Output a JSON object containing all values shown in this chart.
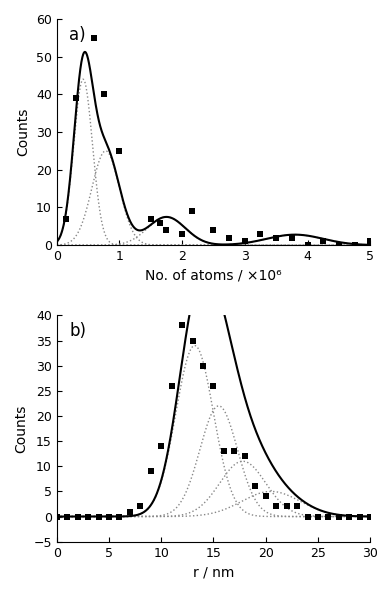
{
  "panel_a": {
    "label": "a)",
    "scatter_x": [
      0.15,
      0.3,
      0.6,
      0.75,
      1.0,
      1.5,
      1.65,
      1.75,
      2.0,
      2.15,
      2.5,
      2.75,
      3.0,
      3.25,
      3.5,
      3.75,
      4.0,
      4.25,
      4.5,
      4.75,
      5.0
    ],
    "scatter_y": [
      7,
      39,
      55,
      40,
      25,
      7,
      6,
      4,
      3,
      9,
      4,
      2,
      1,
      3,
      2,
      2,
      0,
      1,
      0,
      0,
      1
    ],
    "xlim": [
      0,
      5
    ],
    "ylim": [
      0,
      60
    ],
    "yticks": [
      0,
      10,
      20,
      30,
      40,
      50,
      60
    ],
    "xticks": [
      0,
      1,
      2,
      3,
      4,
      5
    ],
    "xlabel": "No. of atoms / ×10⁶",
    "ylabel": "Counts",
    "gaussians": [
      {
        "amp": 44,
        "mu": 0.42,
        "sigma": 0.15
      },
      {
        "amp": 25,
        "mu": 0.78,
        "sigma": 0.22
      },
      {
        "amp": 7.5,
        "mu": 1.75,
        "sigma": 0.3
      },
      {
        "amp": 2.8,
        "mu": 3.8,
        "sigma": 0.45
      }
    ]
  },
  "panel_b": {
    "label": "b)",
    "scatter_x": [
      0,
      1,
      2,
      3,
      4,
      5,
      6,
      7,
      8,
      9,
      10,
      11,
      12,
      13,
      14,
      15,
      16,
      17,
      18,
      19,
      20,
      21,
      22,
      23,
      24,
      25,
      26,
      27,
      28,
      29,
      30
    ],
    "scatter_y": [
      0,
      0,
      0,
      0,
      0,
      0,
      0,
      1,
      2,
      9,
      14,
      26,
      38,
      35,
      30,
      26,
      13,
      13,
      12,
      6,
      4,
      2,
      2,
      2,
      0,
      0,
      0,
      0,
      0,
      0,
      0
    ],
    "xlim": [
      0,
      30
    ],
    "ylim": [
      -5,
      40
    ],
    "yticks": [
      -5,
      0,
      5,
      10,
      15,
      20,
      25,
      30,
      35,
      40
    ],
    "xticks": [
      0,
      5,
      10,
      15,
      20,
      25,
      30
    ],
    "xlabel": "r / nm",
    "ylabel": "Counts",
    "gaussians": [
      {
        "amp": 34,
        "mu": 13.2,
        "sigma": 1.8
      },
      {
        "amp": 22,
        "mu": 15.5,
        "sigma": 1.8
      },
      {
        "amp": 11,
        "mu": 17.8,
        "sigma": 2.2
      },
      {
        "amp": 5,
        "mu": 20.5,
        "sigma": 2.8
      }
    ]
  },
  "bg_color": "#ffffff",
  "line_color": "#000000",
  "scatter_color": "#000000",
  "dotted_color": "#888888"
}
